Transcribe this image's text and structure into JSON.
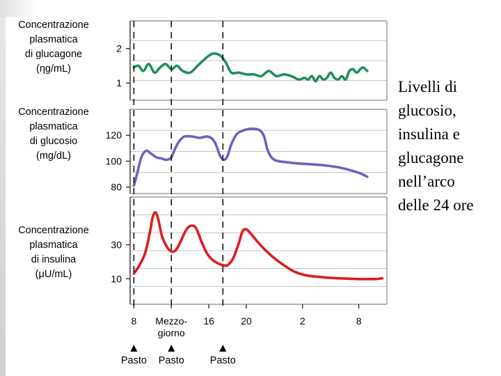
{
  "caption": [
    "Livelli di",
    "glucosio,",
    "insulina e",
    "glucagone",
    "nell’arco",
    "delle 24 ore"
  ],
  "chart_data": [
    {
      "type": "line",
      "name": "glucagon",
      "ylabel": [
        "Concentrazione",
        "plasmatica",
        "di glucagone",
        "(ηg/mL)"
      ],
      "color": "#1f8f58",
      "ylim": [
        0.5,
        2.8
      ],
      "yticks": [
        "2",
        "1"
      ],
      "ytick_values": [
        2,
        1
      ],
      "x": [
        8,
        8.5,
        9,
        9.6,
        10.2,
        10.8,
        11.4,
        12,
        12.6,
        13.2,
        14,
        14.8,
        15.6,
        16.4,
        17.2,
        17.8,
        18.4,
        19.2,
        20,
        20.8,
        21.6,
        22.4,
        23.2,
        24,
        24.8,
        25.6,
        26.2,
        26.6,
        27,
        27.4,
        27.8,
        28.2,
        28.6,
        29,
        29.4,
        29.8,
        30.2,
        30.6,
        31,
        31.4,
        31.8,
        32.4,
        32.9
      ],
      "values": [
        1.45,
        1.5,
        1.35,
        1.55,
        1.3,
        1.45,
        1.55,
        1.4,
        1.5,
        1.35,
        1.3,
        1.5,
        1.7,
        1.85,
        1.8,
        1.6,
        1.3,
        1.3,
        1.25,
        1.25,
        1.2,
        1.35,
        1.2,
        1.25,
        1.2,
        1.1,
        1.15,
        1.1,
        1.2,
        1.05,
        1.2,
        1.1,
        1.15,
        1.3,
        1.15,
        1.1,
        1.2,
        1.1,
        1.35,
        1.4,
        1.3,
        1.45,
        1.35
      ]
    },
    {
      "type": "line",
      "name": "glucose",
      "ylabel": [
        "Concentrazione",
        "plasmatica",
        "di glucosio",
        "(mg/dL)"
      ],
      "color": "#7060c0",
      "ylim": [
        75,
        140
      ],
      "yticks": [
        "120",
        "100",
        "80"
      ],
      "ytick_values": [
        120,
        100,
        80
      ],
      "x": [
        8,
        8.4,
        8.8,
        9.3,
        9.8,
        10.4,
        11,
        11.5,
        12,
        12.3,
        12.8,
        13.4,
        14.2,
        15,
        15.8,
        16.4,
        16.8,
        17.2,
        17.6,
        18,
        18.4,
        19,
        19.8,
        20.6,
        21.4,
        21.9,
        22.3,
        23,
        24.5,
        26,
        28,
        30,
        32,
        32.9
      ],
      "values": [
        81,
        92,
        103,
        108,
        106,
        103,
        102,
        101,
        103,
        108,
        115,
        119,
        119,
        118,
        119,
        117,
        112,
        104,
        101,
        104,
        113,
        121,
        124,
        125,
        124,
        119,
        108,
        101,
        99,
        98,
        97,
        95,
        91,
        88
      ]
    },
    {
      "type": "line",
      "name": "insulin",
      "ylabel": [
        "Concentrazione",
        "plasmatica",
        "di insulina",
        "(μU/mL)"
      ],
      "color": "#dd1c1c",
      "ylim": [
        -5,
        58
      ],
      "yticks": [
        "30",
        "10"
      ],
      "ytick_values": [
        30,
        10
      ],
      "x": [
        8,
        8.6,
        9.2,
        9.7,
        10,
        10.3,
        10.6,
        11,
        11.5,
        12,
        12.5,
        13,
        13.5,
        14,
        14.6,
        15.2,
        15.8,
        16.4,
        17,
        17.5,
        18,
        18.6,
        19.2,
        19.6,
        20,
        20.4,
        21,
        22,
        23,
        24,
        25,
        26,
        27,
        28,
        29,
        30,
        31,
        32,
        33,
        34,
        34.5
      ],
      "values": [
        13,
        18,
        25,
        37,
        46,
        49,
        45,
        35,
        29,
        26,
        27,
        32,
        38,
        41,
        40,
        32,
        25,
        21,
        19,
        18,
        18,
        22,
        31,
        38,
        39,
        37,
        33,
        27,
        22,
        18,
        14.5,
        12.5,
        11.5,
        11,
        10.5,
        10.2,
        10,
        9.8,
        9.8,
        9.9,
        10.3
      ]
    }
  ],
  "x_axis": {
    "x_min": 7.6,
    "x_max": 35,
    "ticks": [
      {
        "x": 8,
        "label": [
          "8"
        ]
      },
      {
        "x": 12,
        "label": [
          "Mezzo-",
          "giorno"
        ]
      },
      {
        "x": 16,
        "label": [
          "16"
        ]
      },
      {
        "x": 20,
        "label": [
          "20"
        ]
      },
      {
        "x": 26,
        "label": [
          "2"
        ]
      },
      {
        "x": 32,
        "label": [
          "8"
        ]
      }
    ]
  },
  "meals": [
    {
      "x": 8,
      "label": "Pasto"
    },
    {
      "x": 12,
      "label": "Pasto"
    },
    {
      "x": 17.5,
      "label": "Pasto"
    }
  ]
}
